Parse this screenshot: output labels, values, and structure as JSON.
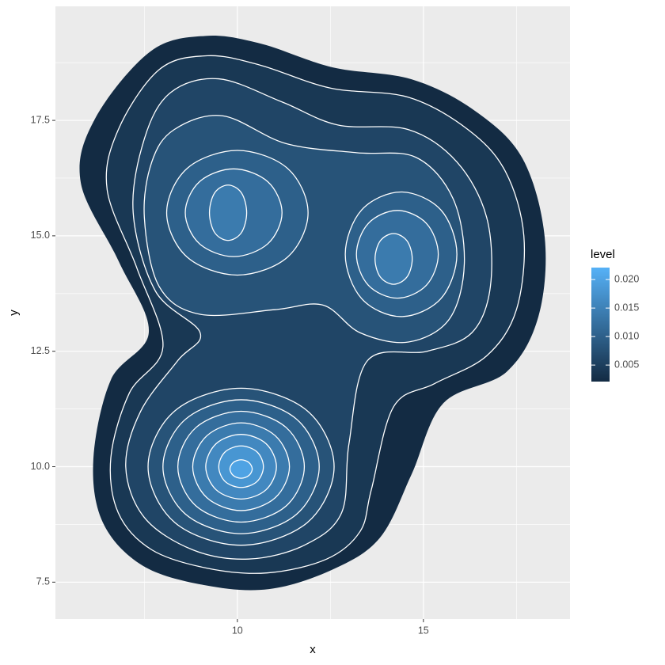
{
  "chart_data": {
    "type": "contour",
    "xlabel": "x",
    "ylabel": "y",
    "xlim": [
      5.11,
      18.94
    ],
    "ylim": [
      6.7,
      19.97
    ],
    "xticks": [
      10,
      15
    ],
    "yticks": [
      7.5,
      {
        "value": 10,
        "label": "10.0"
      },
      12.5,
      {
        "value": 15,
        "label": "15.0"
      },
      17.5
    ],
    "grid": true,
    "line_color": "#ffffff",
    "legend": {
      "title": "level",
      "low_color": "#132B43",
      "high_color": "#56B1F7",
      "lim": [
        0.0021,
        0.0221
      ],
      "ticks": [
        0.005,
        {
          "value": 0.01,
          "label": "0.010"
        },
        0.015,
        {
          "value": 0.02,
          "label": "0.020"
        }
      ]
    },
    "contours": [
      {
        "level": 0.002,
        "x": [
          7.66,
          9.15,
          10.64,
          12.55,
          14.68,
          16.38,
          17.66,
          18.26,
          18.09,
          17.23,
          15.53,
          14.68,
          13.83,
          12.55,
          10.85,
          9.15,
          7.45,
          6.38,
          6.13,
          6.6,
          7.62,
          6.81,
          5.79,
          6.17
        ],
        "y": [
          18.99,
          19.33,
          19.16,
          18.65,
          18.39,
          17.71,
          16.68,
          14.97,
          13.25,
          12.05,
          11.37,
          9.83,
          8.46,
          7.77,
          7.35,
          7.43,
          7.86,
          8.8,
          10.17,
          11.88,
          12.91,
          14.45,
          16.16,
          17.53
        ]
      },
      {
        "level": 0.004,
        "x": [
          7.9,
          9.2,
          10.6,
          12.5,
          14.6,
          16.2,
          17.2,
          17.7,
          17.5,
          16.7,
          15.3,
          14.2,
          13.6,
          13.3,
          12.4,
          10.8,
          9.2,
          7.7,
          6.8,
          6.6,
          7.1,
          8.0,
          7.3,
          6.5,
          6.8
        ],
        "y": [
          18.6,
          18.9,
          18.7,
          18.2,
          18.0,
          17.3,
          16.4,
          15.0,
          13.4,
          12.4,
          11.8,
          11.3,
          9.5,
          8.6,
          8.0,
          7.7,
          7.8,
          8.2,
          9.0,
          10.2,
          11.6,
          12.6,
          14.3,
          16.0,
          17.3
        ]
      },
      {
        "level": 0.006,
        "x": [
          8.2,
          9.5,
          11.2,
          12.7,
          14.6,
          15.9,
          16.7,
          16.8,
          16.3,
          15.1,
          13.5,
          13.0,
          12.8,
          11.8,
          10.3,
          8.8,
          7.5,
          7.0,
          7.4,
          8.4,
          9.0,
          7.8,
          7.2,
          7.5
        ],
        "y": [
          18.1,
          18.4,
          17.9,
          17.4,
          17.3,
          16.6,
          15.4,
          13.9,
          12.9,
          12.5,
          12.3,
          10.5,
          9.0,
          8.3,
          8.0,
          8.2,
          8.9,
          10.0,
          11.2,
          12.3,
          12.9,
          13.8,
          15.5,
          17.1
        ]
      },
      {
        "level": 0.008,
        "x": [
          8.3,
          9.6,
          11.3,
          13.2,
          14.8,
          15.8,
          16.1,
          15.7,
          14.6,
          13.3,
          12.3,
          11.0,
          9.0,
          7.9,
          7.5,
          7.7
        ],
        "y": [
          17.3,
          17.6,
          17.0,
          16.8,
          16.7,
          15.8,
          14.4,
          13.2,
          12.7,
          12.9,
          13.5,
          13.4,
          13.3,
          13.9,
          15.4,
          16.6
        ]
      },
      {
        "level": 0.008,
        "x": [
          12.6,
          11.88,
          10.1,
          8.32,
          7.6,
          8.32,
          10.1,
          11.88
        ],
        "y": [
          10,
          11.21,
          11.7,
          11.21,
          10,
          8.79,
          8.3,
          8.79
        ]
      },
      {
        "level": 0.01,
        "x": [
          12.2,
          11.59,
          10.1,
          8.61,
          8.0,
          8.61,
          10.1,
          11.59
        ],
        "y": [
          10,
          11.03,
          11.45,
          11.03,
          10,
          8.97,
          8.55,
          8.97
        ]
      },
      {
        "level": 0.01,
        "x": [
          11.9,
          11.35,
          10.0,
          8.65,
          8.1,
          8.65,
          10.0,
          11.35
        ],
        "y": [
          15.5,
          16.46,
          16.85,
          16.46,
          15.5,
          14.54,
          14.15,
          14.54
        ]
      },
      {
        "level": 0.01,
        "x": [
          15.9,
          15.47,
          14.4,
          13.34,
          12.9,
          13.34,
          14.4,
          15.47
        ],
        "y": [
          14.6,
          15.56,
          15.95,
          15.56,
          14.6,
          13.64,
          13.25,
          13.64
        ]
      },
      {
        "level": 0.012,
        "x": [
          11.8,
          11.31,
          10.1,
          8.89,
          8.4,
          8.89,
          10.1,
          11.31
        ],
        "y": [
          10,
          10.85,
          11.2,
          10.85,
          10,
          9.15,
          8.8,
          9.15
        ]
      },
      {
        "level": 0.012,
        "x": [
          11.2,
          10.82,
          9.9,
          8.98,
          8.6,
          8.98,
          9.9,
          10.82
        ],
        "y": [
          15.5,
          16.17,
          16.45,
          16.17,
          15.5,
          14.83,
          14.55,
          14.83
        ]
      },
      {
        "level": 0.012,
        "x": [
          15.4,
          15.08,
          14.3,
          13.52,
          13.2,
          13.52,
          14.3,
          15.08
        ],
        "y": [
          14.6,
          15.27,
          15.55,
          15.27,
          14.6,
          13.93,
          13.65,
          13.93
        ]
      },
      {
        "level": 0.014,
        "x": [
          11.4,
          11.02,
          10.1,
          9.18,
          8.8,
          9.18,
          10.1,
          11.02
        ],
        "y": [
          10,
          10.67,
          10.95,
          10.67,
          10,
          9.33,
          9.05,
          9.33
        ]
      },
      {
        "level": 0.014,
        "x": [
          10.25,
          10.11,
          9.75,
          9.39,
          9.25,
          9.39,
          9.75,
          10.11
        ],
        "y": [
          15.5,
          15.93,
          16.1,
          15.93,
          15.5,
          15.07,
          14.9,
          15.07
        ]
      },
      {
        "level": 0.014,
        "x": [
          14.7,
          14.56,
          14.2,
          13.84,
          13.7,
          13.84,
          14.2,
          14.56
        ],
        "y": [
          14.5,
          14.89,
          15.05,
          14.89,
          14.5,
          14.11,
          13.95,
          14.11
        ]
      },
      {
        "level": 0.016,
        "x": [
          11.05,
          10.77,
          10.1,
          9.43,
          9.15,
          9.43,
          10.1,
          10.77
        ],
        "y": [
          10,
          10.5,
          10.7,
          10.5,
          10,
          9.5,
          9.3,
          9.5
        ]
      },
      {
        "level": 0.018,
        "x": [
          10.7,
          10.53,
          10.1,
          9.67,
          9.5,
          9.67,
          10.1,
          10.53
        ],
        "y": [
          10,
          10.32,
          10.45,
          10.32,
          10,
          9.68,
          9.55,
          9.68
        ]
      },
      {
        "level": 0.02,
        "x": [
          10.4,
          10.31,
          10.1,
          9.89,
          9.8,
          9.89,
          10.1,
          10.31
        ],
        "y": [
          9.95,
          10.09,
          10.15,
          10.09,
          9.95,
          9.81,
          9.75,
          9.81
        ]
      }
    ]
  }
}
